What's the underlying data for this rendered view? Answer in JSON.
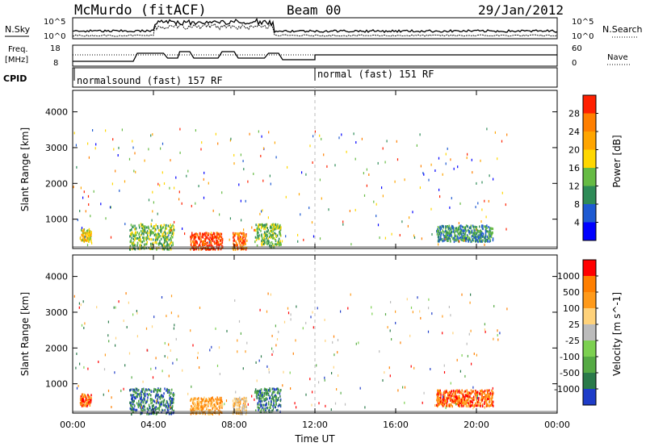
{
  "header": {
    "station": "McMurdo (fitACF)",
    "beam": "Beam 00",
    "date": "29/Jan/2012"
  },
  "top_panel": {
    "left_labels": {
      "nsky": "N.Sky",
      "freq": "Freq.",
      "freq_unit": "[MHz]",
      "cpid": "CPID"
    },
    "right_labels": {
      "nsearch": "N.Search",
      "nave": "Nave"
    },
    "noise_axis_ticks": [
      "10^5",
      "10^0"
    ],
    "freq_axis_ticks": [
      "18",
      "8"
    ],
    "nave_axis_ticks": [
      "60",
      "0"
    ],
    "cpid_segments": [
      {
        "label": "normalsound (fast) 157 RF",
        "start_hour": 0,
        "end_hour": 12
      },
      {
        "label": "normal (fast) 151 RF",
        "start_hour": 12,
        "end_hour": 24
      }
    ]
  },
  "chart_data": [
    {
      "type": "heatmap",
      "title": "",
      "xlabel": "Time UT",
      "ylabel": "Slant Range [km]",
      "x_ticks": [
        "00:00",
        "04:00",
        "08:00",
        "12:00",
        "16:00",
        "20:00",
        "00:00"
      ],
      "xlim_hours": [
        0,
        24
      ],
      "y_ticks": [
        1000,
        2000,
        3000,
        4000
      ],
      "ylim_km": [
        180,
        4600
      ],
      "colorbar": {
        "label": "Power [dB]",
        "ticks": [
          "4",
          "8",
          "12",
          "16",
          "20",
          "24",
          "28"
        ],
        "colors": [
          "#0000ff",
          "#1e5ad2",
          "#2e8b57",
          "#66bb44",
          "#ffd700",
          "#ffa500",
          "#ff7f00",
          "#ff2000"
        ]
      },
      "echo_regions": [
        {
          "start_hour": 0.35,
          "end_hour": 0.9,
          "min_km": 400,
          "max_km": 750,
          "level": 4
        },
        {
          "start_hour": 2.8,
          "end_hour": 5.0,
          "min_km": 180,
          "max_km": 900,
          "level": 3
        },
        {
          "start_hour": 5.8,
          "end_hour": 7.4,
          "min_km": 180,
          "max_km": 650,
          "level": 7
        },
        {
          "start_hour": 7.9,
          "end_hour": 8.6,
          "min_km": 180,
          "max_km": 650,
          "level": 6
        },
        {
          "start_hour": 9.0,
          "end_hour": 10.3,
          "min_km": 250,
          "max_km": 900,
          "level": 3
        },
        {
          "start_hour": 18.0,
          "end_hour": 20.8,
          "min_km": 400,
          "max_km": 850,
          "level": 2
        }
      ]
    },
    {
      "type": "heatmap",
      "title": "",
      "xlabel": "Time UT",
      "ylabel": "Slant Range [km]",
      "x_ticks": [
        "00:00",
        "04:00",
        "08:00",
        "12:00",
        "16:00",
        "20:00",
        "00:00"
      ],
      "xlim_hours": [
        0,
        24
      ],
      "y_ticks": [
        1000,
        2000,
        3000,
        4000
      ],
      "ylim_km": [
        180,
        4600
      ],
      "colorbar": {
        "label": "Velocity [m s^-1]",
        "ticks": [
          "1000",
          "500",
          "100",
          "25",
          "-25",
          "-100",
          "-500",
          "-1000"
        ],
        "colors": [
          "#1e3cc8",
          "#2a7a4a",
          "#55aa44",
          "#7cd050",
          "#bbbbbb",
          "#ffd27a",
          "#ff9a1a",
          "#ff7f00",
          "#ff0000"
        ]
      },
      "echo_regions": [
        {
          "start_hour": 0.35,
          "end_hour": 0.9,
          "min_km": 400,
          "max_km": 750,
          "level": 7
        },
        {
          "start_hour": 2.8,
          "end_hour": 5.0,
          "min_km": 180,
          "max_km": 900,
          "level": 1
        },
        {
          "start_hour": 5.8,
          "end_hour": 7.4,
          "min_km": 180,
          "max_km": 650,
          "level": 6
        },
        {
          "start_hour": 7.9,
          "end_hour": 8.6,
          "min_km": 180,
          "max_km": 650,
          "level": 5
        },
        {
          "start_hour": 9.0,
          "end_hour": 10.3,
          "min_km": 250,
          "max_km": 900,
          "level": 1
        },
        {
          "start_hour": 18.0,
          "end_hour": 20.8,
          "min_km": 400,
          "max_km": 850,
          "level": 7
        }
      ]
    }
  ]
}
